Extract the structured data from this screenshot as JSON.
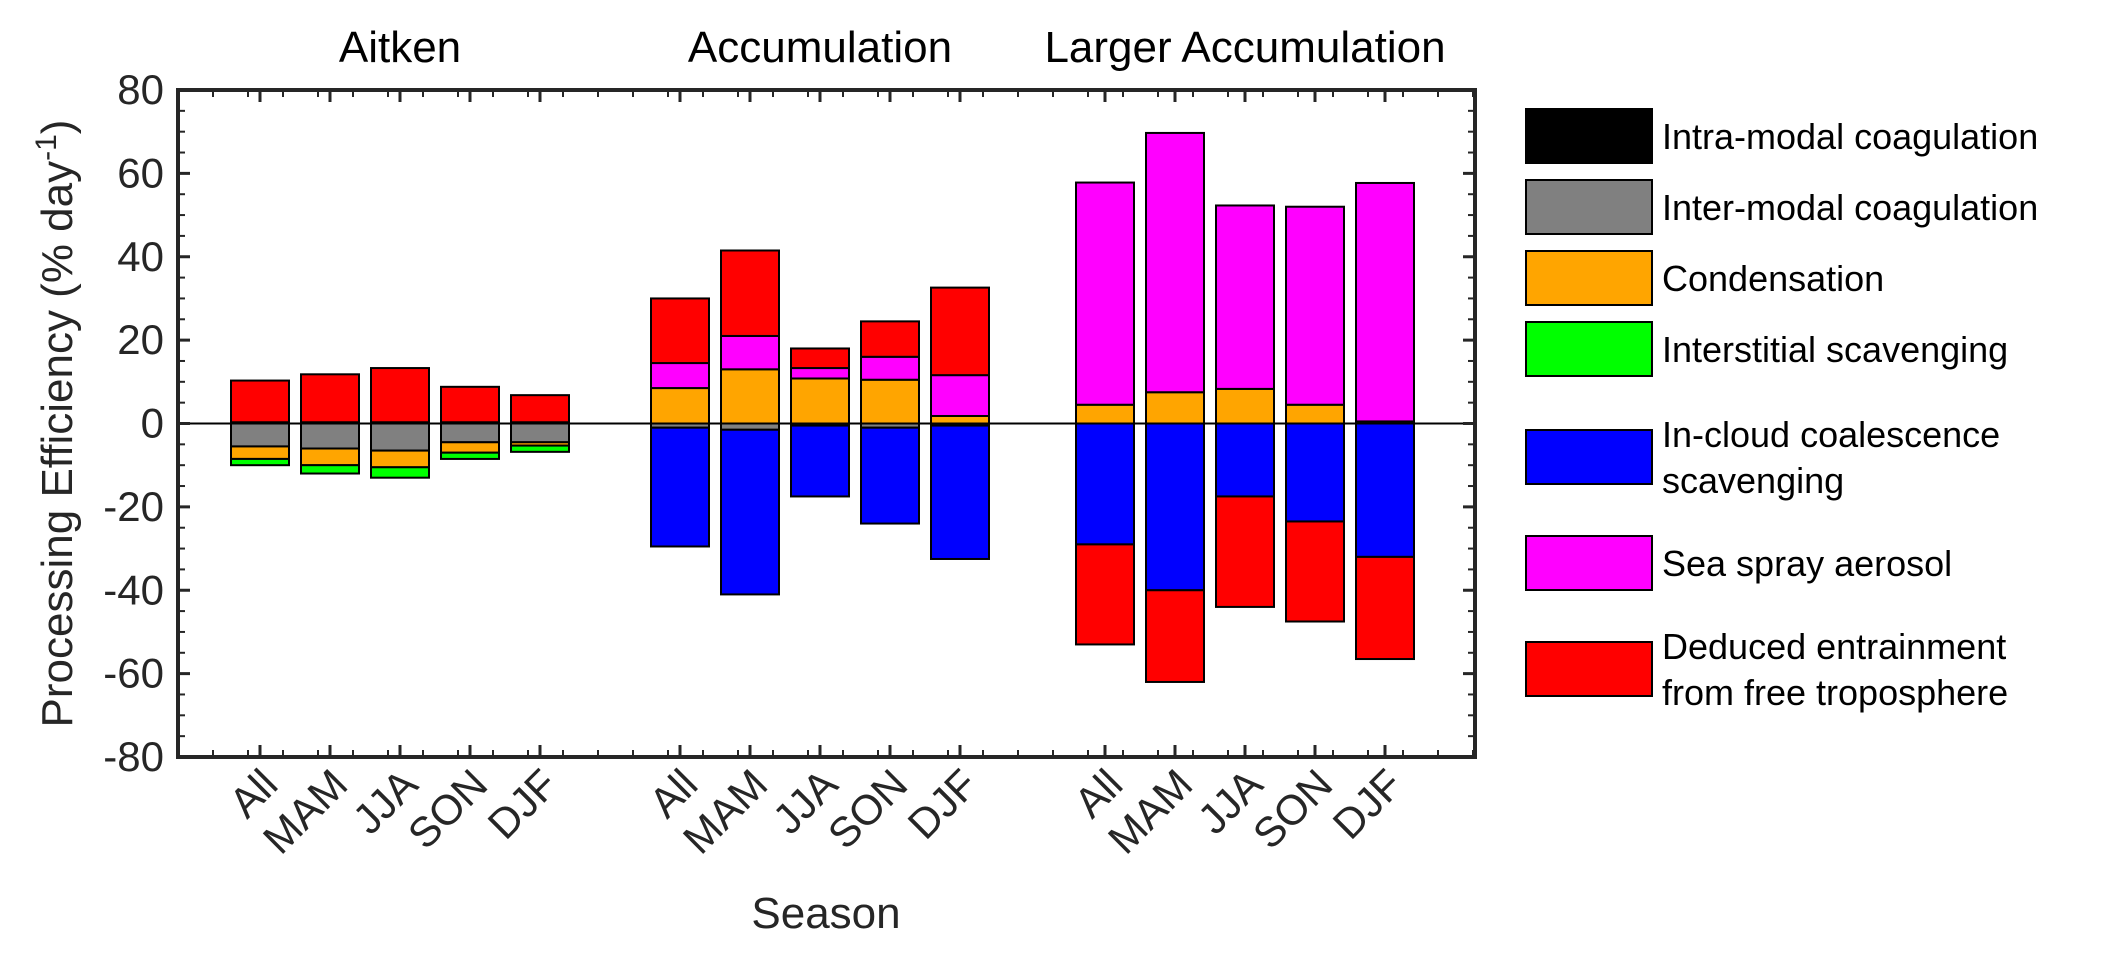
{
  "chart_data": {
    "type": "bar",
    "stacked": true,
    "ylabel": "Processing Efficiency (% day",
    "ylabel_superscript": "-1",
    "ylabel_suffix": ")",
    "xlabel": "Season",
    "ylim": [
      -80,
      80
    ],
    "yticks": [
      80,
      60,
      40,
      20,
      0,
      -20,
      -40,
      -60,
      -80
    ],
    "groups": [
      {
        "title": "Aitken",
        "categories": [
          "All",
          "MAM",
          "JJA",
          "SON",
          "DJF"
        ]
      },
      {
        "title": "Accumulation",
        "categories": [
          "All",
          "MAM",
          "JJA",
          "SON",
          "DJF"
        ]
      },
      {
        "title": "Larger Accumulation",
        "categories": [
          "All",
          "MAM",
          "JJA",
          "SON",
          "DJF"
        ]
      }
    ],
    "series": [
      {
        "name": "Intra-modal coagulation",
        "color": "#000000",
        "values": [
          [
            0.3,
            0.3,
            0.3,
            0.3,
            0.3
          ],
          [
            0,
            0,
            0,
            0,
            0
          ],
          [
            0,
            0,
            0,
            0,
            0
          ]
        ]
      },
      {
        "name": "Inter-modal coagulation",
        "color": "#808080",
        "values": [
          [
            -5.5,
            -6,
            -6.5,
            -4.5,
            -4.5
          ],
          [
            -1,
            -1.5,
            -0.5,
            -1,
            -0.5
          ],
          [
            0,
            0,
            0,
            0,
            0
          ]
        ]
      },
      {
        "name": "Condensation",
        "color": "#ffa500",
        "values": [
          [
            -3,
            -4,
            -4,
            -2.5,
            -0.8
          ],
          [
            8.5,
            13,
            10.8,
            10.5,
            1.8
          ],
          [
            4.5,
            7.5,
            8.3,
            4.5,
            0.5
          ]
        ]
      },
      {
        "name": "Interstitial scavenging",
        "color": "#00ff00",
        "values": [
          [
            -1.5,
            -2,
            -2.5,
            -1.5,
            -1.5
          ],
          [
            0,
            0,
            0,
            0,
            0
          ],
          [
            0,
            0,
            0,
            0,
            0
          ]
        ]
      },
      {
        "name": "In-cloud coalescence scavenging",
        "color": "#0000ff",
        "values": [
          [
            0,
            0,
            0,
            0,
            0
          ],
          [
            -28.5,
            -39.5,
            -17,
            -23,
            -32
          ],
          [
            -29,
            -40,
            -17.5,
            -23.5,
            -32
          ]
        ]
      },
      {
        "name": "Sea spray aerosol",
        "color": "#ff00ff",
        "values": [
          [
            0,
            0,
            0,
            0,
            0
          ],
          [
            6,
            8,
            2.5,
            5.5,
            9.8
          ],
          [
            53.3,
            62.2,
            44,
            47.5,
            57.2
          ]
        ]
      },
      {
        "name": "Deduced entrainment from free troposphere",
        "color": "#ff0000",
        "values": [
          [
            10,
            11.5,
            13,
            8.5,
            6.5
          ],
          [
            15.5,
            20.5,
            4.7,
            8.5,
            21
          ],
          [
            -24,
            -22,
            -26.5,
            -24,
            -24.5
          ]
        ]
      }
    ],
    "zero_line": true,
    "legend_position": "right-outside"
  },
  "legend": {
    "items": [
      {
        "lines": [
          "Intra-modal coagulation"
        ],
        "color": "#000000"
      },
      {
        "lines": [
          "Inter-modal coagulation"
        ],
        "color": "#808080"
      },
      {
        "lines": [
          "Condensation"
        ],
        "color": "#ffa500"
      },
      {
        "lines": [
          "Interstitial scavenging"
        ],
        "color": "#00ff00"
      },
      {
        "lines": [
          "In-cloud coalescence",
          "scavenging"
        ],
        "color": "#0000ff"
      },
      {
        "lines": [
          "Sea spray aerosol"
        ],
        "color": "#ff00ff"
      },
      {
        "lines": [
          "Deduced entrainment",
          "from free troposphere"
        ],
        "color": "#ff0000"
      }
    ]
  }
}
